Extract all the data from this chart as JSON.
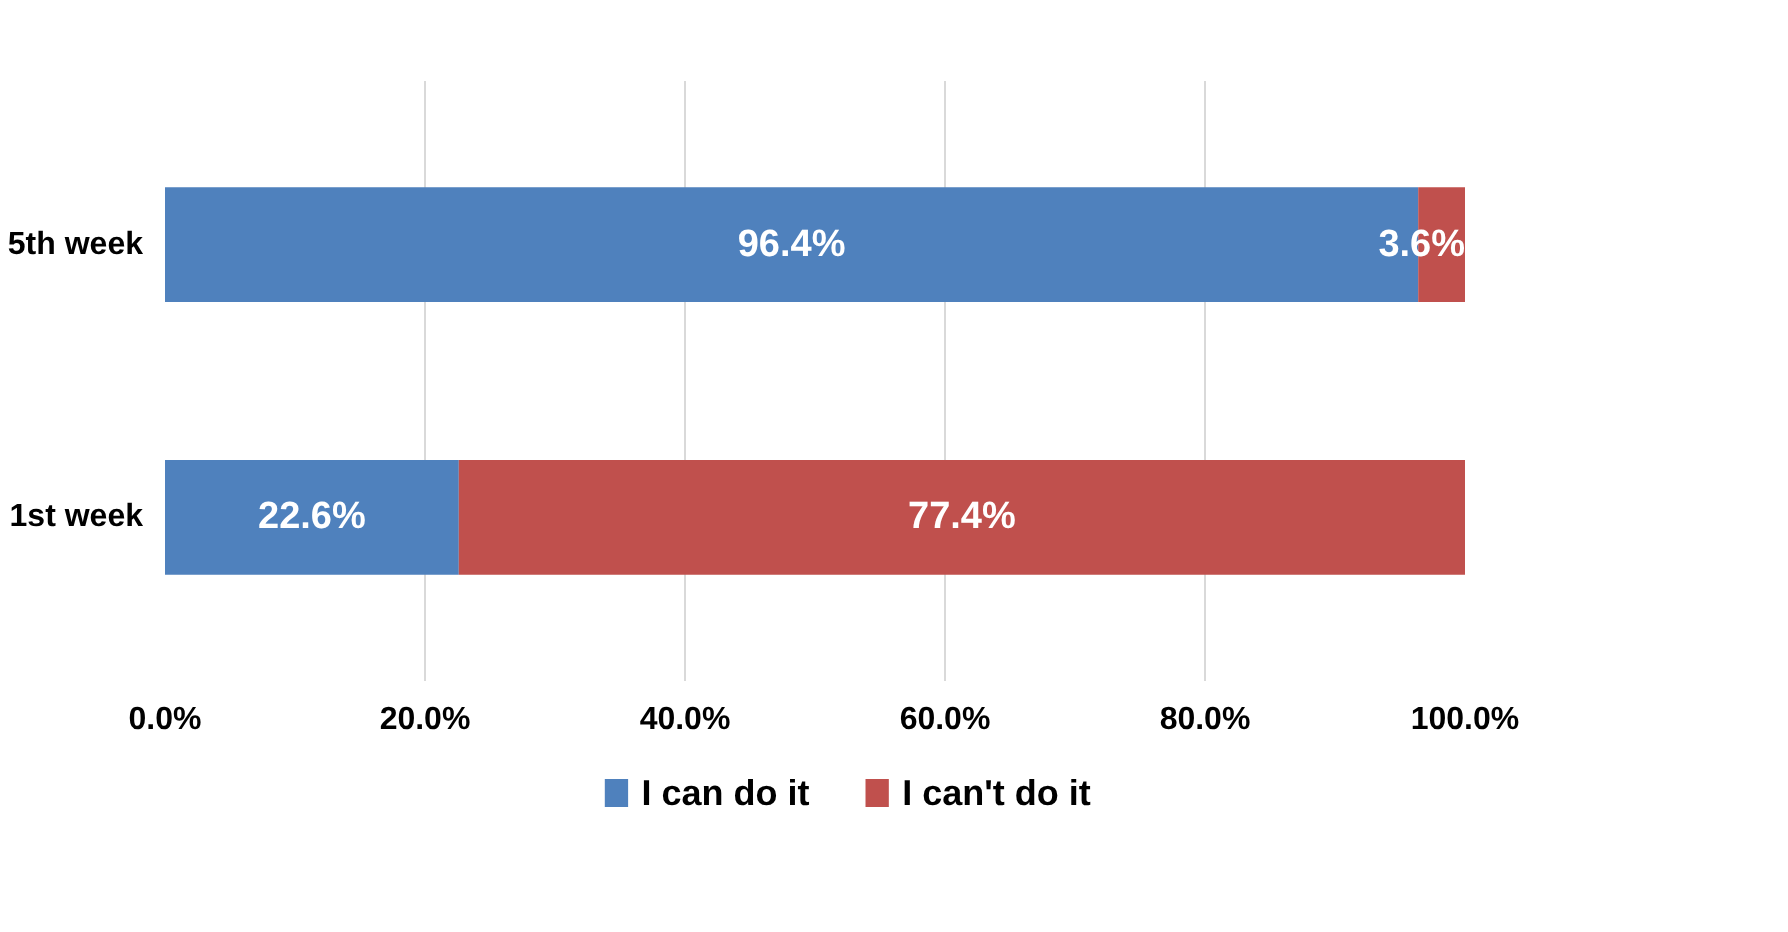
{
  "chart_data": {
    "type": "bar",
    "orientation": "horizontal",
    "stacked": true,
    "categories": [
      "5th week",
      "1st week"
    ],
    "series": [
      {
        "name": "I can do it",
        "color": "#4f81bd",
        "values": [
          96.4,
          22.6
        ],
        "value_labels": [
          "96.4%",
          "22.6%"
        ]
      },
      {
        "name": "I can't do it",
        "color": "#c0504d",
        "values": [
          3.6,
          77.4
        ],
        "value_labels": [
          "3.6%",
          "77.4%"
        ]
      }
    ],
    "xlim": [
      0,
      100
    ],
    "xticks": [
      {
        "value": 0,
        "label": "0.0%"
      },
      {
        "value": 20,
        "label": "20.0%"
      },
      {
        "value": 40,
        "label": "40.0%"
      },
      {
        "value": 60,
        "label": "60.0%"
      },
      {
        "value": 80,
        "label": "80.0%"
      },
      {
        "value": 100,
        "label": "100.0%"
      }
    ],
    "grid": "x",
    "legend": "bottom"
  }
}
